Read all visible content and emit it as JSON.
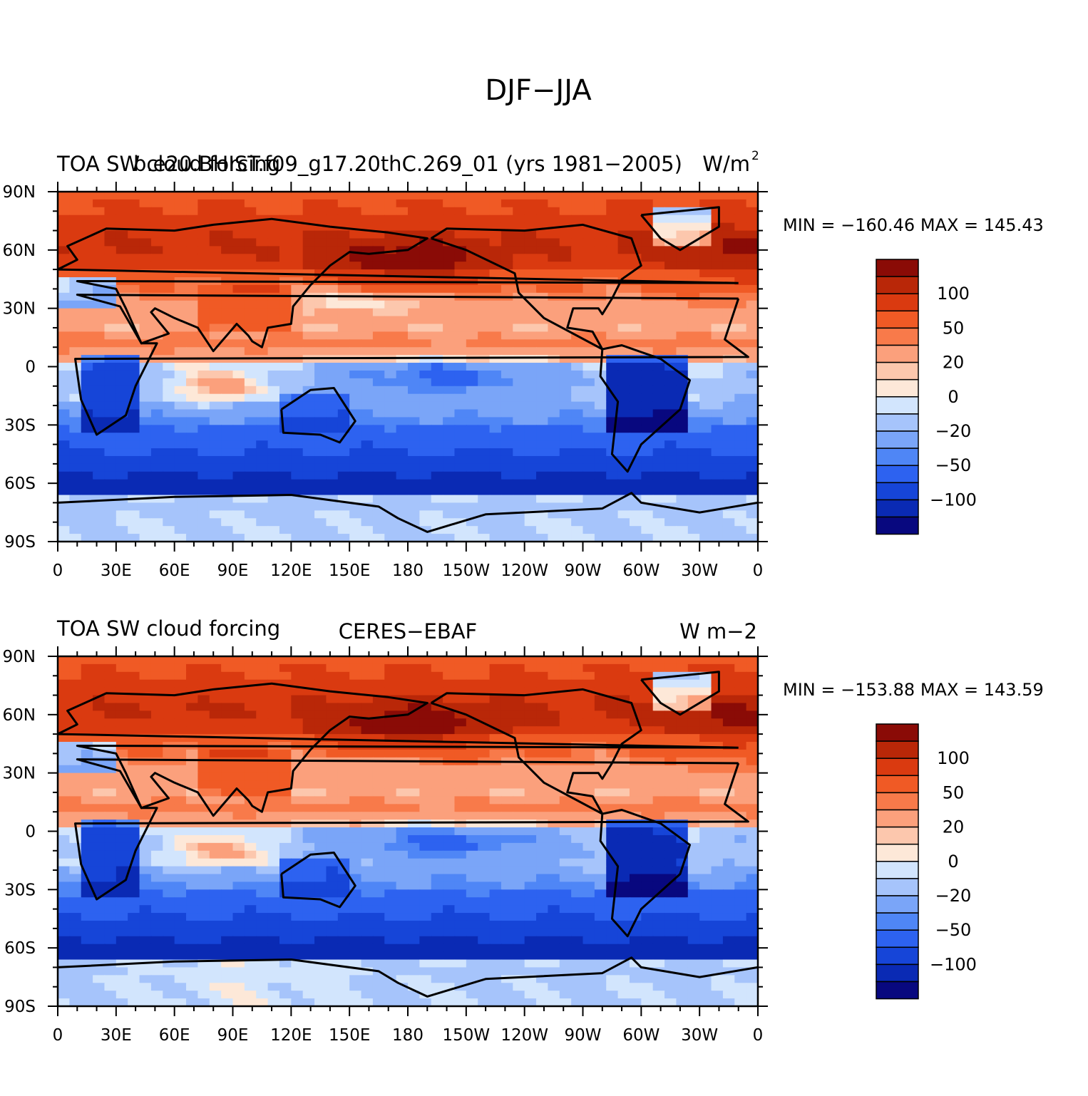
{
  "figure_title": "DJF−JJA",
  "colors": {
    "palette": [
      "#08087f",
      "#0a2ab4",
      "#1645d8",
      "#2d62f0",
      "#4f86f6",
      "#7aa5f8",
      "#a6c4fb",
      "#d2e5fd",
      "#fde8d8",
      "#fcc7ad",
      "#fba07c",
      "#f87a4a",
      "#f05a25",
      "#da3a10",
      "#b92708",
      "#8a0b06"
    ],
    "land_outline": "#000000"
  },
  "panels": [
    {
      "id": "model",
      "left_title": "TOA SW cloud forcing",
      "center_title": "b.e20.BHIST.f09_g17.20thC.269_01 (yrs 1981−2005)",
      "right_title": "W/m",
      "right_title_sup": "2",
      "stats": "MIN = −160.46  MAX = 145.43",
      "variant": 0
    },
    {
      "id": "obs",
      "left_title": "TOA SW cloud forcing",
      "center_title": "CERES−EBAF",
      "right_title": "W m−2",
      "right_title_sup": "",
      "stats": "MIN = −153.88  MAX = 143.59",
      "variant": 1
    }
  ],
  "colorbar_labels": [
    "100",
    "50",
    "20",
    "0",
    "−20",
    "−50",
    "−100"
  ],
  "axes": {
    "lon_labels": [
      "0",
      "30E",
      "60E",
      "90E",
      "120E",
      "150E",
      "180",
      "150W",
      "120W",
      "90W",
      "60W",
      "30W",
      "0"
    ],
    "lat_labels": [
      "90N",
      "60N",
      "30N",
      "0",
      "30S",
      "60S",
      "90S"
    ]
  },
  "chart_data": {
    "type": "heatmap",
    "title": "DJF−JJA",
    "xlabel": "",
    "ylabel": "",
    "x_range": [
      0,
      360
    ],
    "y_range": [
      -90,
      90
    ],
    "units": "W/m2",
    "contour_levels": [
      -150,
      -125,
      -100,
      -75,
      -50,
      -40,
      -20,
      -10,
      0,
      10,
      20,
      40,
      50,
      75,
      100,
      125,
      150
    ],
    "panels": [
      {
        "name": "b.e20.BHIST.f09_g17.20thC.269_01 (yrs 1981−2005)",
        "min": -160.46,
        "max": 145.43
      },
      {
        "name": "CERES−EBAF",
        "min": -153.88,
        "max": 143.59
      }
    ]
  }
}
